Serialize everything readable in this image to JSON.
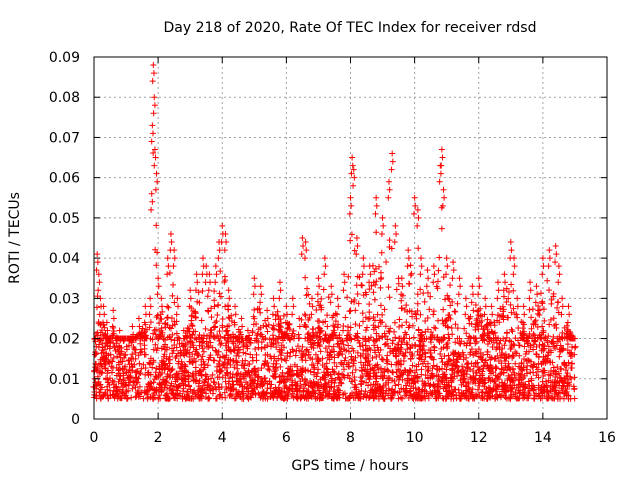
{
  "chart_data": {
    "type": "scatter",
    "title": "Day 218 of 2020, Rate Of TEC Index for receiver rdsd",
    "xlabel": "GPS time / hours",
    "ylabel": "ROTI / TECUs",
    "xlim": [
      0,
      16
    ],
    "ylim": [
      0,
      0.09
    ],
    "x_ticks": [
      0,
      2,
      4,
      6,
      8,
      10,
      12,
      14,
      16
    ],
    "x_tick_labels": [
      "0",
      "2",
      "4",
      "6",
      "8",
      "10",
      "12",
      "14",
      "16"
    ],
    "y_ticks": [
      0,
      0.01,
      0.02,
      0.03,
      0.04,
      0.05,
      0.06,
      0.07,
      0.08,
      0.09
    ],
    "y_tick_labels": [
      "0",
      "0.01",
      "0.02",
      "0.03",
      "0.04",
      "0.05",
      "0.06",
      "0.07",
      "0.08",
      "0.09"
    ],
    "grid": true,
    "marker": "+",
    "color": "#ff0000",
    "data_range_x": [
      0,
      15
    ],
    "series": [
      {
        "name": "ROTI",
        "x": [
          0.0,
          0.05,
          0.1,
          0.15,
          0.2,
          0.3,
          0.4,
          0.5,
          0.6,
          0.8,
          1.0,
          1.2,
          1.4,
          1.6,
          1.75,
          1.8,
          1.82,
          1.85,
          1.88,
          1.9,
          1.95,
          2.0,
          2.1,
          2.3,
          2.4,
          2.5,
          2.6,
          2.8,
          3.0,
          3.2,
          3.4,
          3.5,
          3.6,
          3.8,
          3.9,
          4.0,
          4.1,
          4.2,
          4.4,
          4.6,
          4.8,
          5.0,
          5.2,
          5.4,
          5.6,
          5.8,
          6.0,
          6.2,
          6.4,
          6.5,
          6.6,
          6.8,
          7.0,
          7.2,
          7.4,
          7.6,
          7.8,
          8.0,
          8.05,
          8.1,
          8.2,
          8.4,
          8.6,
          8.8,
          9.0,
          9.2,
          9.3,
          9.4,
          9.6,
          9.8,
          10.0,
          10.1,
          10.2,
          10.4,
          10.6,
          10.8,
          10.85,
          10.9,
          11.0,
          11.2,
          11.4,
          11.6,
          11.8,
          12.0,
          12.2,
          12.4,
          12.6,
          12.8,
          13.0,
          13.1,
          13.2,
          13.4,
          13.6,
          13.8,
          14.0,
          14.2,
          14.4,
          14.5,
          14.6,
          14.8,
          15.0
        ],
        "y": [
          0.012,
          0.02,
          0.041,
          0.036,
          0.03,
          0.028,
          0.024,
          0.018,
          0.027,
          0.022,
          0.02,
          0.023,
          0.025,
          0.028,
          0.03,
          0.056,
          0.073,
          0.088,
          0.08,
          0.067,
          0.061,
          0.035,
          0.03,
          0.04,
          0.046,
          0.042,
          0.03,
          0.022,
          0.032,
          0.036,
          0.04,
          0.038,
          0.036,
          0.038,
          0.044,
          0.048,
          0.046,
          0.032,
          0.028,
          0.025,
          0.022,
          0.035,
          0.033,
          0.027,
          0.03,
          0.034,
          0.028,
          0.03,
          0.025,
          0.045,
          0.044,
          0.03,
          0.035,
          0.04,
          0.033,
          0.03,
          0.036,
          0.055,
          0.065,
          0.062,
          0.045,
          0.04,
          0.038,
          0.055,
          0.05,
          0.059,
          0.066,
          0.048,
          0.035,
          0.042,
          0.055,
          0.052,
          0.04,
          0.037,
          0.038,
          0.063,
          0.067,
          0.057,
          0.04,
          0.039,
          0.035,
          0.03,
          0.033,
          0.035,
          0.03,
          0.028,
          0.034,
          0.036,
          0.044,
          0.04,
          0.03,
          0.028,
          0.034,
          0.033,
          0.04,
          0.042,
          0.043,
          0.038,
          0.03,
          0.028,
          0.02
        ],
        "baseline_band": [
          0.005,
          0.02
        ]
      }
    ]
  }
}
